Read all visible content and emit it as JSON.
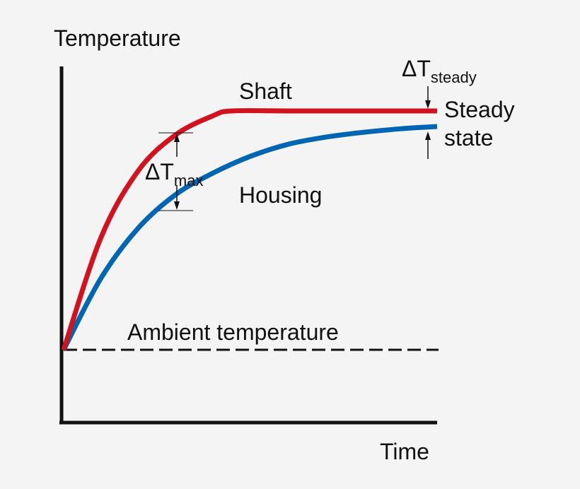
{
  "chart_data": {
    "type": "line",
    "ylabel": "Temperature",
    "xlabel": "Time",
    "grid": false,
    "legend": "none",
    "background": "#f4f4f4",
    "series": [
      {
        "name": "Shaft",
        "color": "#d1121f",
        "x": [
          0,
          0.1,
          0.2,
          0.3,
          0.4,
          0.45,
          0.6,
          0.8,
          1.0
        ],
        "y": [
          0,
          0.47,
          0.75,
          0.9,
          0.98,
          1.0,
          1.0,
          1.0,
          1.0
        ]
      },
      {
        "name": "Housing",
        "color": "#0066b3",
        "x": [
          0,
          0.1,
          0.2,
          0.3,
          0.4,
          0.5,
          0.6,
          0.7,
          0.8,
          0.9,
          1.0
        ],
        "y": [
          0,
          0.3,
          0.51,
          0.65,
          0.74,
          0.81,
          0.86,
          0.89,
          0.91,
          0.925,
          0.935
        ]
      }
    ],
    "ambient_label": "Ambient temperature",
    "annotations": {
      "dt_max": {
        "symbol": "ΔT",
        "subscript": "max"
      },
      "dt_steady": {
        "symbol": "ΔT",
        "subscript": "steady"
      },
      "steady_state": [
        "Steady",
        "state"
      ]
    }
  }
}
